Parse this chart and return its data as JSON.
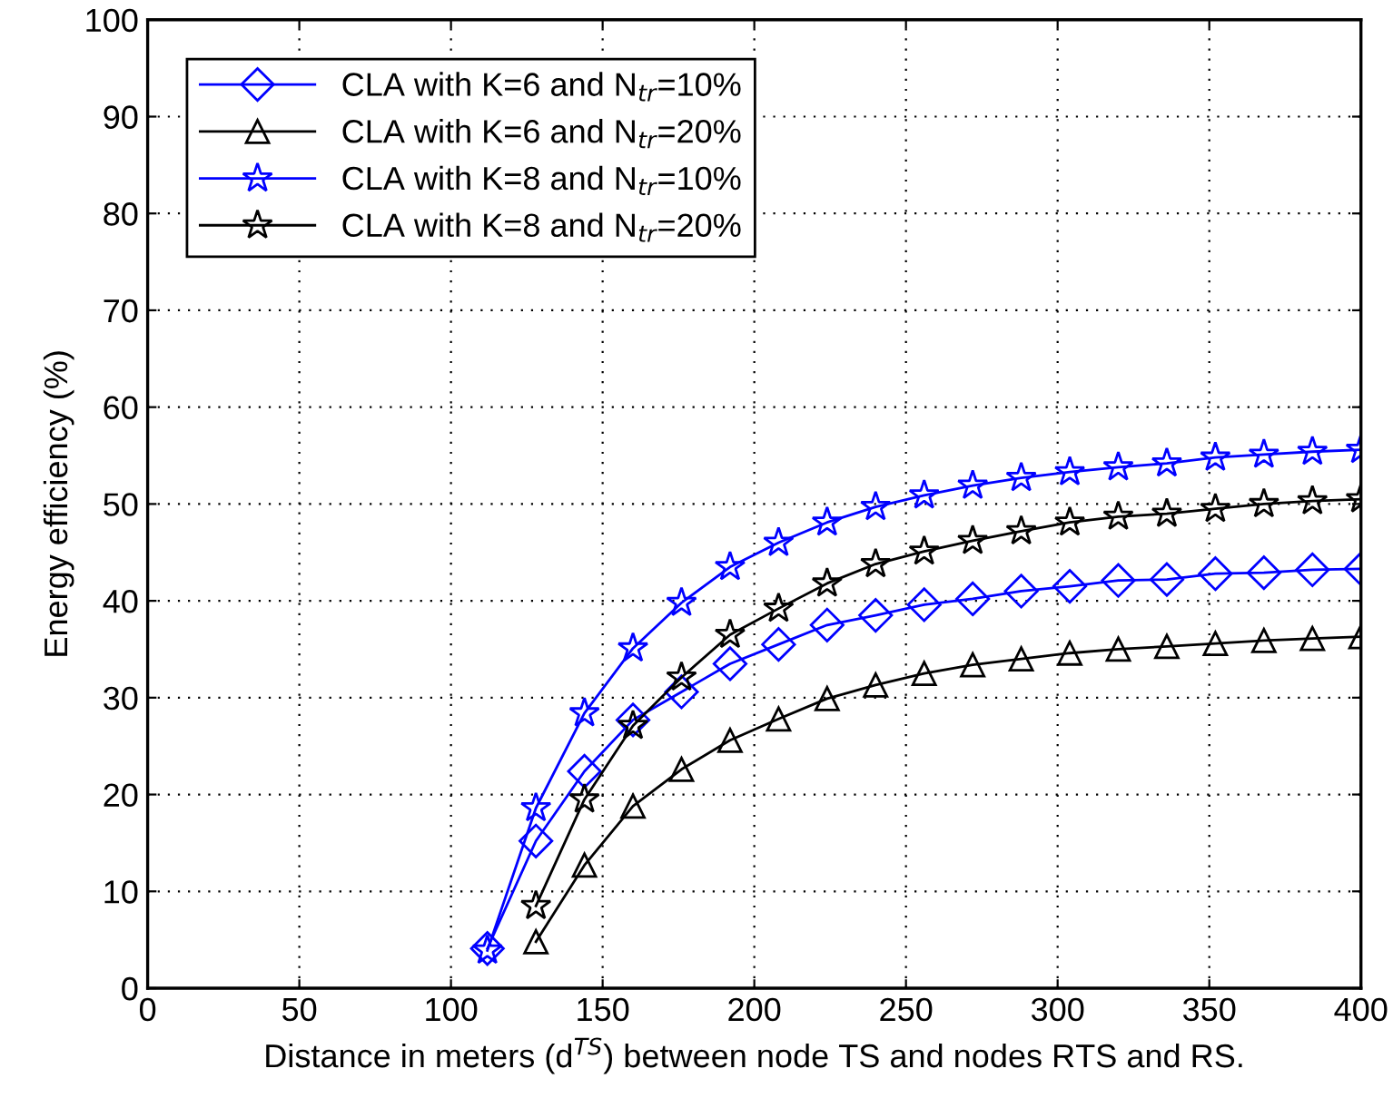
{
  "chart_data": {
    "type": "line",
    "xlabel": "Distance in meters (d$^{TS}$) between node TS and nodes RTS and RS.",
    "ylabel": "Energy efficiency (%)",
    "xlim": [
      0,
      400
    ],
    "ylim": [
      0,
      100
    ],
    "xticks": [
      0,
      50,
      100,
      150,
      200,
      250,
      300,
      350,
      400
    ],
    "yticks": [
      0,
      10,
      20,
      30,
      40,
      50,
      60,
      70,
      80,
      90,
      100
    ],
    "grid": true,
    "legend": "top left",
    "line_style": "solid",
    "series": [
      {
        "name": "CLA with K=6 and N$_{tr}$=10%",
        "color": "#0000ff",
        "marker": "diamond",
        "x": [
          112,
          128,
          144,
          160,
          176,
          192,
          208,
          224,
          240,
          256,
          272,
          288,
          304,
          320,
          336,
          352,
          368,
          384,
          400
        ],
        "values": [
          4.1,
          15.2,
          22.4,
          27.7,
          30.6,
          33.5,
          35.5,
          37.5,
          38.5,
          39.6,
          40.2,
          41.0,
          41.5,
          42.1,
          42.2,
          42.8,
          42.9,
          43.2,
          43.3
        ]
      },
      {
        "name": "CLA with K=6 and N$_{tr}$=20%",
        "color": "#000000",
        "marker": "triangle",
        "x": [
          128,
          144,
          160,
          176,
          192,
          208,
          224,
          240,
          256,
          272,
          288,
          304,
          320,
          336,
          352,
          368,
          384,
          400
        ],
        "values": [
          4.8,
          12.7,
          18.8,
          22.6,
          25.6,
          27.8,
          29.9,
          31.3,
          32.5,
          33.4,
          34.0,
          34.6,
          35.0,
          35.3,
          35.6,
          35.9,
          36.1,
          36.3
        ]
      },
      {
        "name": "CLA with K=8 and N$_{tr}$=10%",
        "color": "#0000ff",
        "marker": "star",
        "x": [
          112,
          128,
          144,
          160,
          176,
          192,
          208,
          224,
          240,
          256,
          272,
          288,
          304,
          320,
          336,
          352,
          368,
          384,
          400
        ],
        "values": [
          3.9,
          18.6,
          28.4,
          35.1,
          39.8,
          43.5,
          46.0,
          48.1,
          49.7,
          50.9,
          51.9,
          52.7,
          53.3,
          53.8,
          54.2,
          54.8,
          55.1,
          55.4,
          55.6
        ]
      },
      {
        "name": "CLA with K=8 and N$_{tr}$=20%",
        "color": "#000000",
        "marker": "star",
        "x": [
          128,
          144,
          160,
          176,
          192,
          208,
          224,
          240,
          256,
          272,
          288,
          304,
          320,
          336,
          352,
          368,
          384,
          400
        ],
        "values": [
          8.5,
          19.5,
          27.1,
          32.1,
          36.5,
          39.2,
          41.8,
          43.8,
          45.1,
          46.2,
          47.2,
          48.1,
          48.7,
          49.0,
          49.5,
          50.0,
          50.3,
          50.5
        ]
      }
    ]
  }
}
